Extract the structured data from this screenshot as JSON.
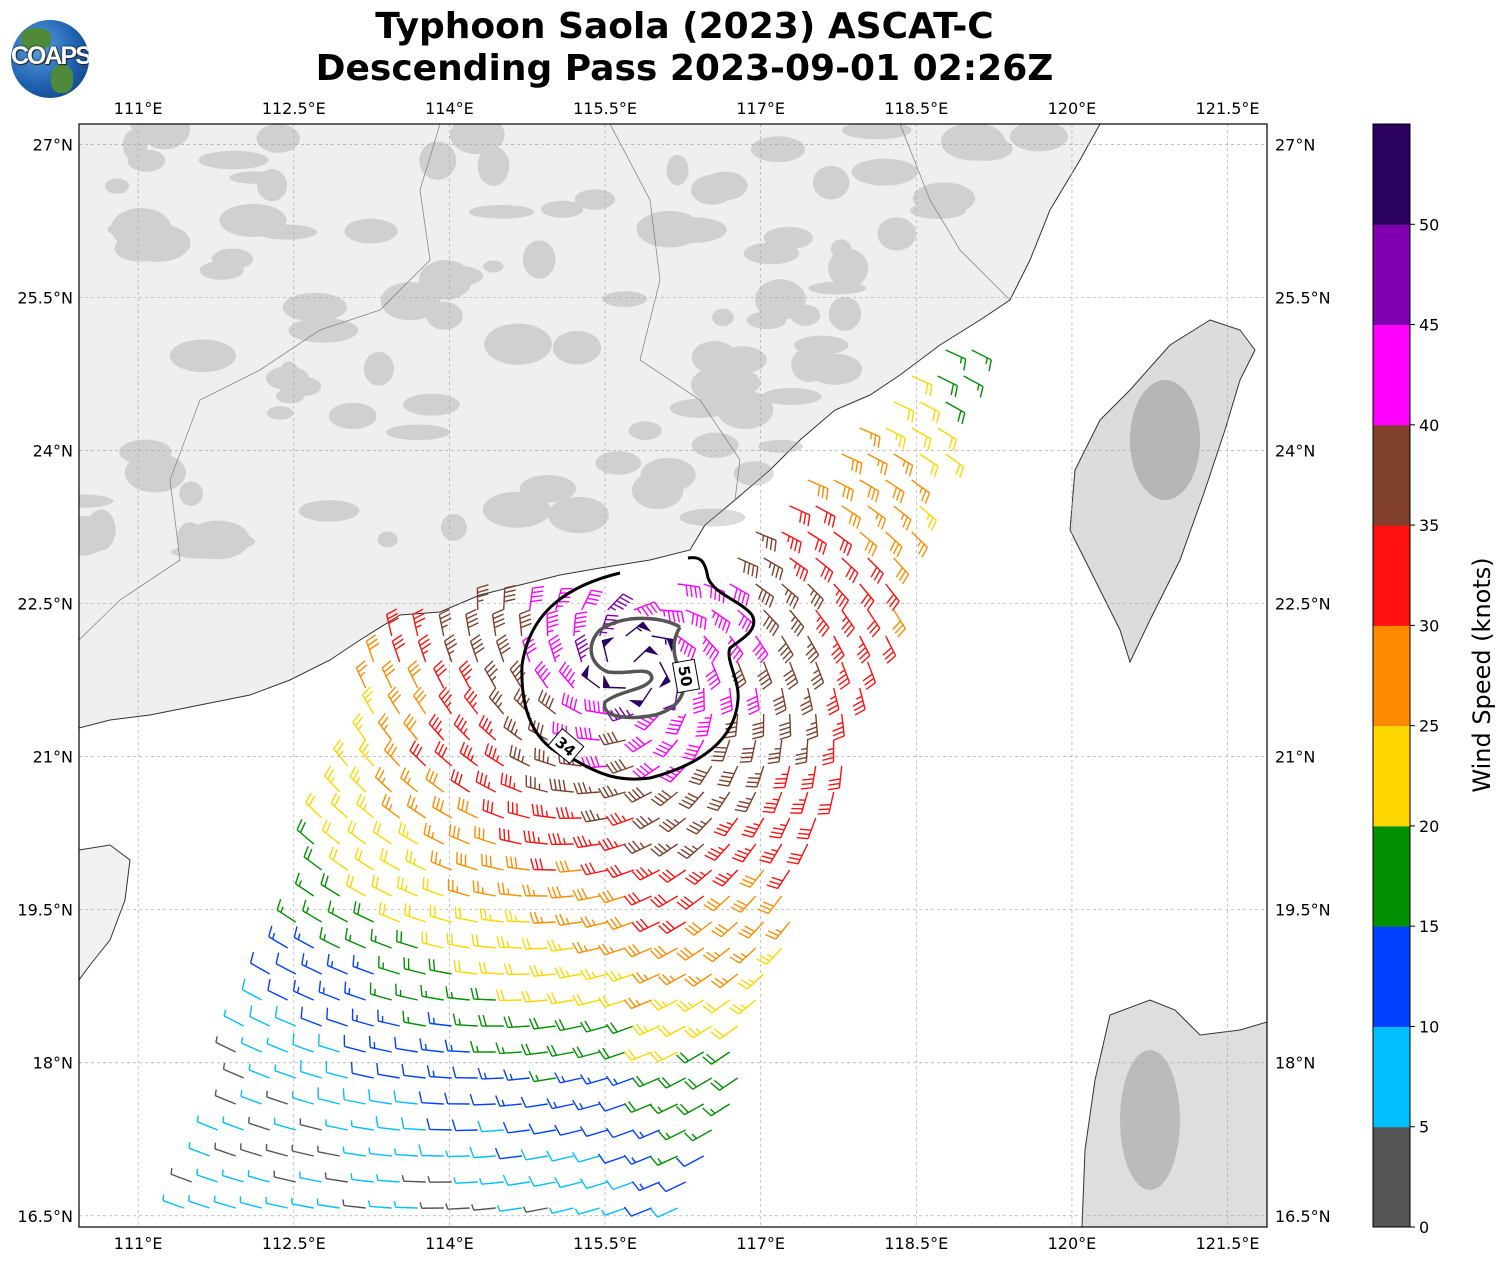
{
  "header": {
    "title_line1": "Typhoon Saola (2023) ASCAT-C",
    "title_line2": "Descending Pass 2023-09-01 02:26Z",
    "logo_text": "COAPS"
  },
  "map": {
    "lon_ticks": [
      "111°E",
      "112.5°E",
      "114°E",
      "115.5°E",
      "117°E",
      "118.5°E",
      "120°E",
      "121.5°E"
    ],
    "lat_ticks": [
      "27°N",
      "25.5°N",
      "24°N",
      "22.5°N",
      "21°N",
      "19.5°N",
      "18°N",
      "16.5°N"
    ],
    "lon_values": [
      111,
      112.5,
      114,
      115.5,
      117,
      118.5,
      120,
      121.5
    ],
    "lat_values": [
      27,
      25.5,
      24,
      22.5,
      21,
      19.5,
      18,
      16.5
    ],
    "extent": {
      "lon": [
        110.43,
        121.88
      ],
      "lat": [
        16.39,
        27.2
      ]
    },
    "gridlines": true,
    "contours": [
      {
        "label": "34",
        "color": "#000000"
      },
      {
        "label": "50",
        "color": "#555555"
      }
    ]
  },
  "colorbar": {
    "label": "Wind Speed (knots)",
    "ticks": [
      "0",
      "5",
      "10",
      "15",
      "20",
      "25",
      "30",
      "35",
      "40",
      "45",
      "50"
    ],
    "bins": [
      0,
      5,
      10,
      15,
      20,
      25,
      30,
      35,
      40,
      45,
      50,
      55
    ],
    "colors": [
      "#555555",
      "#00bfff",
      "#0040ff",
      "#009000",
      "#ffd700",
      "#ff8c00",
      "#ff1010",
      "#7f3f2a",
      "#ff00ff",
      "#8000b0",
      "#2a0060"
    ]
  }
}
